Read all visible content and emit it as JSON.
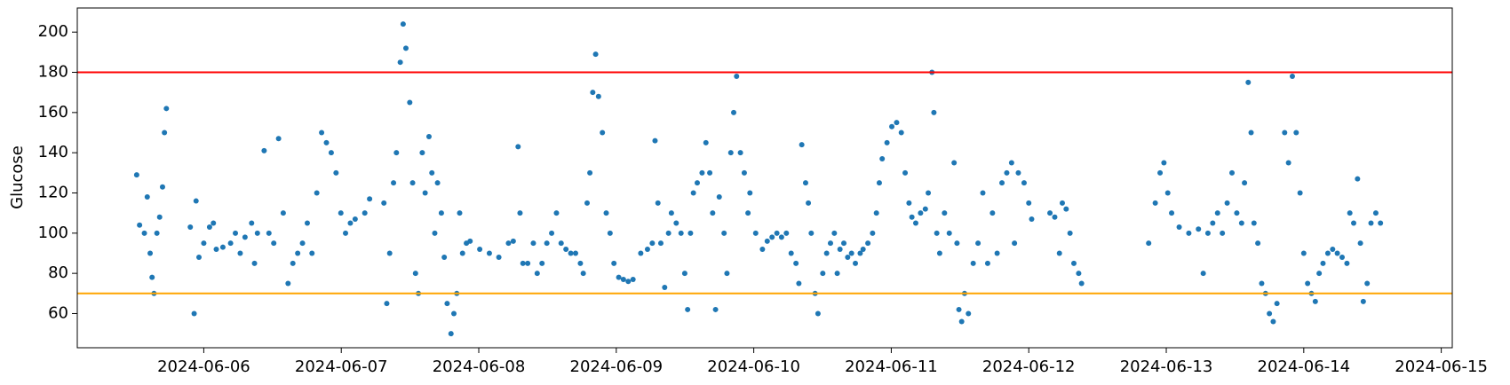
{
  "chart_data": {
    "type": "scatter",
    "y_label": "Glucose",
    "x": [
      19879.512,
      19879.533,
      19879.568,
      19879.589,
      19879.61,
      19879.624,
      19879.638,
      19879.659,
      19879.679,
      19879.7,
      19879.714,
      19879.728,
      19879.902,
      19879.93,
      19879.944,
      19879.965,
      19880.0,
      19880.042,
      19880.07,
      19880.091,
      19880.139,
      19880.195,
      19880.23,
      19880.265,
      19880.3,
      19880.348,
      19880.369,
      19880.39,
      19880.439,
      19880.474,
      19880.509,
      19880.544,
      19880.578,
      19880.613,
      19880.648,
      19880.683,
      19880.718,
      19880.753,
      19880.787,
      19880.822,
      19880.857,
      19880.892,
      19880.927,
      19880.962,
      19880.997,
      19881.031,
      19881.066,
      19881.101,
      19881.171,
      19881.206,
      19881.31,
      19881.331,
      19881.352,
      19881.38,
      19881.401,
      19881.429,
      19881.45,
      19881.47,
      19881.498,
      19881.519,
      19881.54,
      19881.561,
      19881.589,
      19881.61,
      19881.638,
      19881.659,
      19881.68,
      19881.7,
      19881.728,
      19881.749,
      19881.77,
      19881.798,
      19881.819,
      19881.84,
      19881.861,
      19881.882,
      19881.91,
      19881.937,
      19882.007,
      19882.077,
      19882.146,
      19882.216,
      19882.251,
      19882.286,
      19882.3,
      19882.321,
      19882.356,
      19882.397,
      19882.425,
      19882.46,
      19882.495,
      19882.53,
      19882.565,
      19882.599,
      19882.634,
      19882.669,
      19882.704,
      19882.739,
      19882.76,
      19882.788,
      19882.808,
      19882.829,
      19882.85,
      19882.871,
      19882.899,
      19882.927,
      19882.955,
      19882.983,
      19883.018,
      19883.052,
      19883.087,
      19883.122,
      19883.178,
      19883.227,
      19883.262,
      19883.282,
      19883.303,
      19883.324,
      19883.352,
      19883.38,
      19883.401,
      19883.436,
      19883.471,
      19883.498,
      19883.519,
      19883.54,
      19883.561,
      19883.589,
      19883.624,
      19883.652,
      19883.68,
      19883.701,
      19883.722,
      19883.749,
      19883.784,
      19883.805,
      19883.833,
      19883.854,
      19883.875,
      19883.903,
      19883.931,
      19883.958,
      19883.972,
      19884.014,
      19884.063,
      19884.098,
      19884.133,
      19884.168,
      19884.202,
      19884.237,
      19884.272,
      19884.307,
      19884.328,
      19884.349,
      19884.377,
      19884.397,
      19884.418,
      19884.446,
      19884.467,
      19884.502,
      19884.53,
      19884.558,
      19884.586,
      19884.607,
      19884.627,
      19884.655,
      19884.683,
      19884.711,
      19884.739,
      19884.774,
      19884.795,
      19884.83,
      19884.864,
      19884.892,
      19884.913,
      19884.934,
      19884.969,
      19885.004,
      19885.039,
      19885.073,
      19885.101,
      19885.129,
      19885.15,
      19885.178,
      19885.213,
      19885.248,
      19885.269,
      19885.296,
      19885.31,
      19885.331,
      19885.352,
      19885.387,
      19885.422,
      19885.457,
      19885.478,
      19885.492,
      19885.512,
      19885.533,
      19885.561,
      19885.596,
      19885.631,
      19885.666,
      19885.701,
      19885.736,
      19885.77,
      19885.805,
      19885.84,
      19885.875,
      19885.896,
      19885.924,
      19885.966,
      19886.0,
      19886.021,
      19886.154,
      19886.189,
      19886.223,
      19886.244,
      19886.272,
      19886.3,
      19886.328,
      19886.363,
      19886.384,
      19886.872,
      19886.92,
      19886.955,
      19886.983,
      19887.011,
      19887.039,
      19887.094,
      19887.164,
      19887.234,
      19887.269,
      19887.303,
      19887.338,
      19887.373,
      19887.408,
      19887.443,
      19887.478,
      19887.513,
      19887.548,
      19887.569,
      19887.596,
      19887.617,
      19887.638,
      19887.666,
      19887.694,
      19887.722,
      19887.75,
      19887.778,
      19887.805,
      19887.861,
      19887.889,
      19887.917,
      19887.945,
      19887.973,
      19888.0,
      19888.028,
      19888.056,
      19888.084,
      19888.112,
      19888.14,
      19888.175,
      19888.21,
      19888.244,
      19888.279,
      19888.314,
      19888.335,
      19888.363,
      19888.391,
      19888.412,
      19888.433,
      19888.461,
      19888.489,
      19888.524,
      19888.558
    ],
    "series": [
      {
        "color": "#1f77b4",
        "values": [
          129,
          104,
          100,
          118,
          90,
          78,
          70,
          100,
          108,
          123,
          150,
          162,
          103,
          60,
          116,
          88,
          95,
          103,
          105,
          92,
          93,
          95,
          100,
          90,
          98,
          105,
          85,
          100,
          141,
          100,
          95,
          147,
          110,
          75,
          85,
          90,
          95,
          105,
          90,
          120,
          150,
          145,
          140,
          130,
          110,
          100,
          105,
          107,
          110,
          117,
          115,
          65,
          90,
          125,
          140,
          185,
          204,
          192,
          165,
          125,
          80,
          70,
          140,
          120,
          148,
          130,
          100,
          125,
          110,
          88,
          65,
          50,
          60,
          70,
          110,
          90,
          95,
          96,
          92,
          90,
          88,
          95,
          96,
          143,
          110,
          85,
          85,
          95,
          80,
          85,
          95,
          100,
          110,
          95,
          92,
          90,
          90,
          85,
          80,
          115,
          130,
          170,
          189,
          168,
          150,
          110,
          100,
          85,
          78,
          77,
          76,
          77,
          90,
          92,
          95,
          146,
          115,
          95,
          73,
          100,
          110,
          105,
          100,
          80,
          62,
          100,
          120,
          125,
          130,
          145,
          130,
          110,
          62,
          118,
          100,
          80,
          140,
          160,
          178,
          140,
          130,
          110,
          120,
          100,
          92,
          96,
          98,
          100,
          98,
          100,
          90,
          85,
          75,
          144,
          125,
          115,
          100,
          70,
          60,
          80,
          90,
          95,
          100,
          80,
          92,
          95,
          88,
          90,
          85,
          90,
          92,
          95,
          100,
          110,
          125,
          137,
          145,
          153,
          155,
          150,
          130,
          115,
          108,
          105,
          110,
          112,
          120,
          180,
          160,
          100,
          90,
          110,
          100,
          135,
          95,
          62,
          56,
          70,
          60,
          85,
          95,
          120,
          85,
          110,
          90,
          125,
          130,
          135,
          95,
          130,
          125,
          115,
          107,
          110,
          108,
          90,
          115,
          112,
          100,
          85,
          80,
          75,
          95,
          115,
          130,
          135,
          120,
          110,
          103,
          100,
          102,
          80,
          100,
          105,
          110,
          100,
          115,
          130,
          110,
          105,
          125,
          175,
          150,
          105,
          95,
          75,
          70,
          60,
          56,
          65,
          150,
          135,
          178,
          150,
          120,
          90,
          75,
          70,
          66,
          80,
          85,
          90,
          92,
          90,
          88,
          85,
          110,
          105,
          127,
          95,
          66,
          75,
          105,
          110,
          105
        ]
      }
    ],
    "hlines": [
      {
        "value": 180,
        "color": "red"
      },
      {
        "value": 70,
        "color": "orange"
      }
    ],
    "xlim": [
      19879.08,
      19889.08
    ],
    "ylim": [
      43,
      212
    ],
    "xticks": [
      {
        "value": 19880,
        "label": "2024-06-06"
      },
      {
        "value": 19881,
        "label": "2024-06-07"
      },
      {
        "value": 19882,
        "label": "2024-06-08"
      },
      {
        "value": 19883,
        "label": "2024-06-09"
      },
      {
        "value": 19884,
        "label": "2024-06-10"
      },
      {
        "value": 19885,
        "label": "2024-06-11"
      },
      {
        "value": 19886,
        "label": "2024-06-12"
      },
      {
        "value": 19887,
        "label": "2024-06-13"
      },
      {
        "value": 19888,
        "label": "2024-06-14"
      },
      {
        "value": 19889,
        "label": "2024-06-15"
      }
    ],
    "yticks": [
      60,
      80,
      100,
      120,
      140,
      160,
      180,
      200
    ]
  }
}
